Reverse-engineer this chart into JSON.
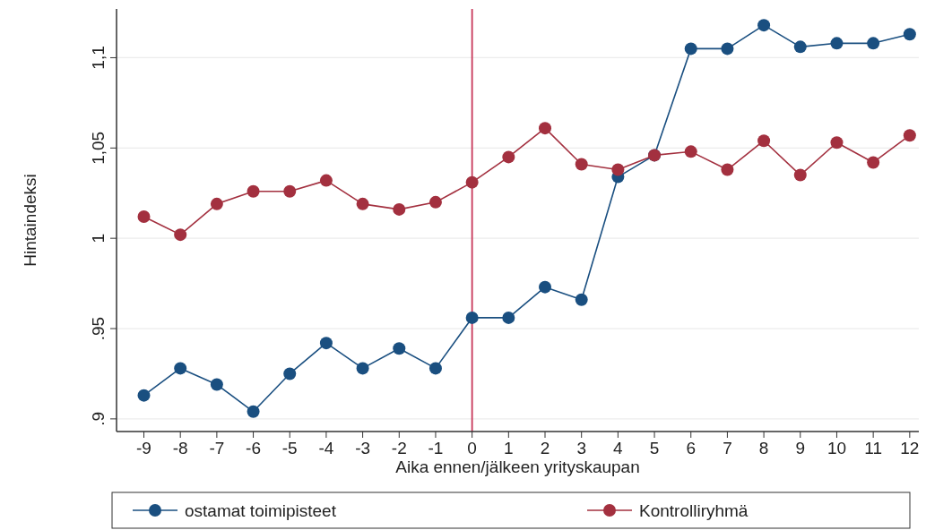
{
  "chart_data": {
    "type": "line",
    "xlabel": "Aika ennen/jälkeen yrityskaupan",
    "ylabel": "Hintaindeksi",
    "x": [
      -9,
      -8,
      -7,
      -6,
      -5,
      -4,
      -3,
      -2,
      -1,
      0,
      1,
      2,
      3,
      4,
      5,
      6,
      7,
      8,
      9,
      10,
      11,
      12
    ],
    "series": [
      {
        "name": "ostamat toimipisteet",
        "color": "#1a4f80",
        "values": [
          0.913,
          0.928,
          0.919,
          0.904,
          0.925,
          0.942,
          0.928,
          0.939,
          0.928,
          0.956,
          0.956,
          0.973,
          0.966,
          1.034,
          1.046,
          1.105,
          1.105,
          1.118,
          1.106,
          1.108,
          1.108,
          1.113
        ]
      },
      {
        "name": "Kontrolliryhmä",
        "color": "#a3303f",
        "values": [
          1.012,
          1.002,
          1.019,
          1.026,
          1.026,
          1.032,
          1.019,
          1.016,
          1.02,
          1.031,
          1.045,
          1.061,
          1.041,
          1.038,
          1.046,
          1.048,
          1.038,
          1.054,
          1.035,
          1.053,
          1.042,
          1.057
        ]
      }
    ],
    "xlim": [
      -9.75,
      12.25
    ],
    "xticks": [
      -9,
      -8,
      -7,
      -6,
      -5,
      -4,
      -3,
      -2,
      -1,
      0,
      1,
      2,
      3,
      4,
      5,
      6,
      7,
      8,
      9,
      10,
      11,
      12
    ],
    "ylim": [
      0.893,
      1.127
    ],
    "yticks": [
      {
        "value": 0.9,
        "label": ".9"
      },
      {
        "value": 0.95,
        "label": ".95"
      },
      {
        "value": 1,
        "label": "1"
      },
      {
        "value": 1.05,
        "label": "1,05"
      },
      {
        "value": 1.1,
        "label": "1,1"
      }
    ],
    "grid": "y",
    "legend": "bottom",
    "marker": "circle",
    "line_style": "solid",
    "ref_lines": [
      {
        "axis": "x",
        "value": 0,
        "label": null,
        "color": "#c8385a"
      }
    ]
  }
}
